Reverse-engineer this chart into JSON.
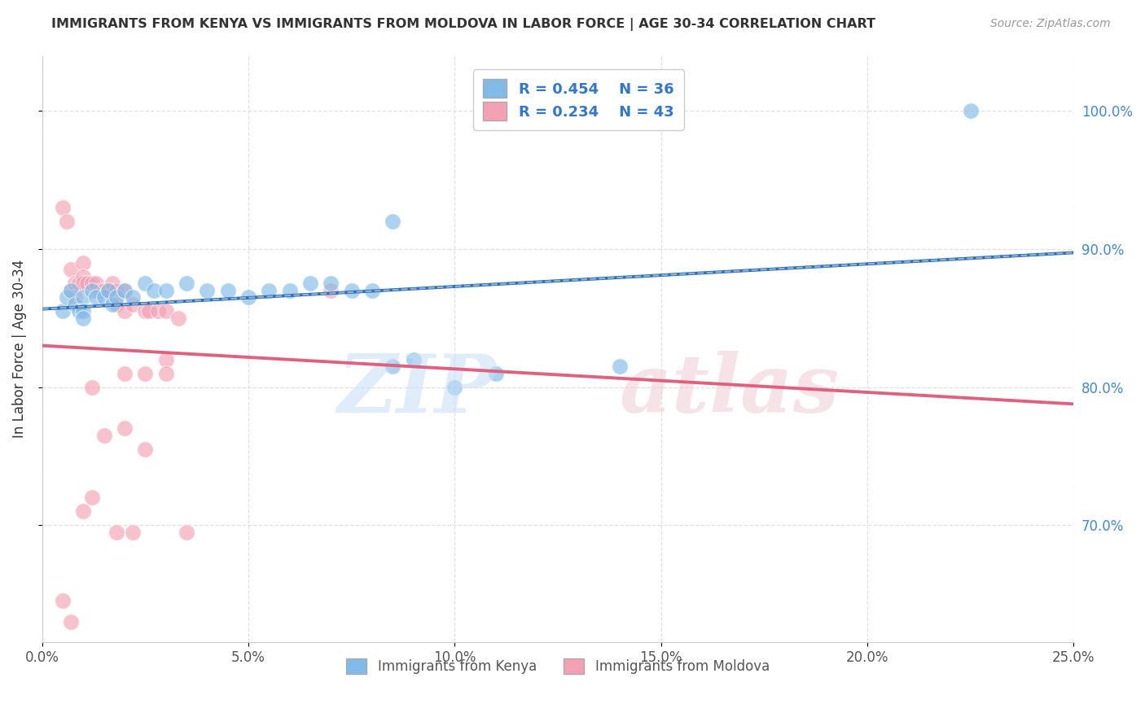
{
  "title": "IMMIGRANTS FROM KENYA VS IMMIGRANTS FROM MOLDOVA IN LABOR FORCE | AGE 30-34 CORRELATION CHART",
  "source": "Source: ZipAtlas.com",
  "ylabel": "In Labor Force | Age 30-34",
  "legend_kenya": "Immigrants from Kenya",
  "legend_moldova": "Immigrants from Moldova",
  "kenya_r": "R = 0.454",
  "kenya_n": "N = 36",
  "moldova_r": "R = 0.234",
  "moldova_n": "N = 43",
  "xlim": [
    0.0,
    0.25
  ],
  "ylim": [
    0.615,
    1.04
  ],
  "xticks": [
    0.0,
    0.05,
    0.1,
    0.15,
    0.2,
    0.25
  ],
  "xticklabels": [
    "0.0%",
    "5.0%",
    "10.0%",
    "15.0%",
    "20.0%",
    "25.0%"
  ],
  "yticks": [
    0.7,
    0.8,
    0.9,
    1.0
  ],
  "yticklabels": [
    "70.0%",
    "80.0%",
    "90.0%",
    "100.0%"
  ],
  "color_kenya": "#82BBE8",
  "color_moldova": "#F4A0B5",
  "color_kenya_line": "#2272C8",
  "color_moldova_line": "#E06080",
  "color_grid": "#DDDDDD",
  "kenya_points": [
    [
      0.005,
      0.855
    ],
    [
      0.006,
      0.865
    ],
    [
      0.007,
      0.87
    ],
    [
      0.008,
      0.86
    ],
    [
      0.009,
      0.855
    ],
    [
      0.01,
      0.865
    ],
    [
      0.01,
      0.855
    ],
    [
      0.01,
      0.85
    ],
    [
      0.012,
      0.87
    ],
    [
      0.013,
      0.865
    ],
    [
      0.015,
      0.865
    ],
    [
      0.016,
      0.87
    ],
    [
      0.017,
      0.86
    ],
    [
      0.018,
      0.865
    ],
    [
      0.02,
      0.87
    ],
    [
      0.022,
      0.865
    ],
    [
      0.025,
      0.875
    ],
    [
      0.027,
      0.87
    ],
    [
      0.03,
      0.87
    ],
    [
      0.035,
      0.875
    ],
    [
      0.04,
      0.87
    ],
    [
      0.045,
      0.87
    ],
    [
      0.05,
      0.865
    ],
    [
      0.055,
      0.87
    ],
    [
      0.06,
      0.87
    ],
    [
      0.065,
      0.875
    ],
    [
      0.07,
      0.875
    ],
    [
      0.075,
      0.87
    ],
    [
      0.08,
      0.87
    ],
    [
      0.085,
      0.815
    ],
    [
      0.09,
      0.82
    ],
    [
      0.1,
      0.8
    ],
    [
      0.11,
      0.81
    ],
    [
      0.14,
      0.815
    ],
    [
      0.085,
      0.92
    ],
    [
      0.225,
      1.0
    ]
  ],
  "moldova_points": [
    [
      0.005,
      0.93
    ],
    [
      0.006,
      0.92
    ],
    [
      0.007,
      0.885
    ],
    [
      0.007,
      0.87
    ],
    [
      0.008,
      0.875
    ],
    [
      0.008,
      0.865
    ],
    [
      0.009,
      0.875
    ],
    [
      0.01,
      0.89
    ],
    [
      0.01,
      0.88
    ],
    [
      0.01,
      0.875
    ],
    [
      0.011,
      0.875
    ],
    [
      0.012,
      0.875
    ],
    [
      0.013,
      0.875
    ],
    [
      0.014,
      0.87
    ],
    [
      0.015,
      0.87
    ],
    [
      0.016,
      0.87
    ],
    [
      0.017,
      0.875
    ],
    [
      0.018,
      0.87
    ],
    [
      0.018,
      0.86
    ],
    [
      0.02,
      0.87
    ],
    [
      0.02,
      0.855
    ],
    [
      0.022,
      0.86
    ],
    [
      0.025,
      0.855
    ],
    [
      0.026,
      0.855
    ],
    [
      0.028,
      0.855
    ],
    [
      0.03,
      0.855
    ],
    [
      0.033,
      0.85
    ],
    [
      0.012,
      0.8
    ],
    [
      0.02,
      0.81
    ],
    [
      0.025,
      0.81
    ],
    [
      0.03,
      0.82
    ],
    [
      0.03,
      0.81
    ],
    [
      0.015,
      0.765
    ],
    [
      0.02,
      0.77
    ],
    [
      0.025,
      0.755
    ],
    [
      0.035,
      0.695
    ],
    [
      0.01,
      0.71
    ],
    [
      0.012,
      0.72
    ],
    [
      0.018,
      0.695
    ],
    [
      0.005,
      0.645
    ],
    [
      0.007,
      0.63
    ],
    [
      0.022,
      0.695
    ],
    [
      0.07,
      0.87
    ]
  ]
}
